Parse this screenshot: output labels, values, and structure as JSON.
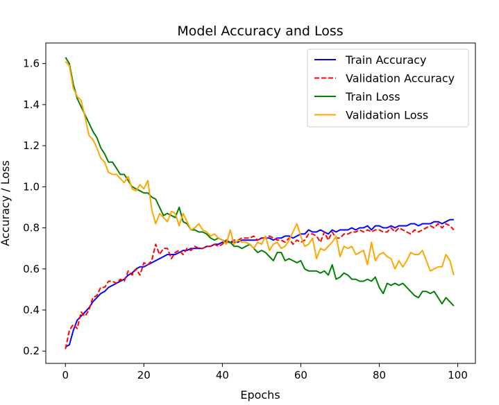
{
  "chart_data": {
    "type": "line",
    "title": "Model Accuracy and Loss",
    "xlabel": "Epochs",
    "ylabel": "Accuracy / Loss",
    "xlim": [
      -5,
      104.5
    ],
    "ylim": [
      0.14,
      1.7
    ],
    "xticks": [
      0,
      20,
      40,
      60,
      80,
      100
    ],
    "yticks": [
      0.2,
      0.4,
      0.6,
      0.8,
      1.0,
      1.2,
      1.4,
      1.6
    ],
    "xtick_labels": [
      "0",
      "20",
      "40",
      "60",
      "80",
      "100"
    ],
    "ytick_labels": [
      "0.2",
      "0.4",
      "0.6",
      "0.8",
      "1.0",
      "1.2",
      "1.4",
      "1.6"
    ],
    "grid": false,
    "legend_position": "top-right",
    "series": [
      {
        "name": "Train Accuracy",
        "color": "#0000ff",
        "style": "solid",
        "x": [
          0,
          1,
          2,
          3,
          4,
          5,
          6,
          7,
          8,
          9,
          10,
          11,
          12,
          13,
          14,
          15,
          16,
          17,
          18,
          19,
          20,
          21,
          22,
          23,
          24,
          25,
          26,
          27,
          28,
          29,
          30,
          31,
          32,
          33,
          34,
          35,
          36,
          37,
          38,
          39,
          40,
          41,
          42,
          43,
          44,
          45,
          46,
          47,
          48,
          49,
          50,
          51,
          52,
          53,
          54,
          55,
          56,
          57,
          58,
          59,
          60,
          61,
          62,
          63,
          64,
          65,
          66,
          67,
          68,
          69,
          70,
          71,
          72,
          73,
          74,
          75,
          76,
          77,
          78,
          79,
          80,
          81,
          82,
          83,
          84,
          85,
          86,
          87,
          88,
          89,
          90,
          91,
          92,
          93,
          94,
          95,
          96,
          97,
          98,
          99
        ],
        "values": [
          0.22,
          0.23,
          0.3,
          0.35,
          0.37,
          0.39,
          0.41,
          0.44,
          0.46,
          0.48,
          0.49,
          0.51,
          0.52,
          0.53,
          0.54,
          0.55,
          0.57,
          0.58,
          0.6,
          0.61,
          0.61,
          0.62,
          0.63,
          0.64,
          0.65,
          0.66,
          0.67,
          0.67,
          0.67,
          0.68,
          0.69,
          0.69,
          0.7,
          0.7,
          0.7,
          0.7,
          0.71,
          0.71,
          0.72,
          0.72,
          0.73,
          0.73,
          0.73,
          0.73,
          0.73,
          0.74,
          0.74,
          0.74,
          0.74,
          0.74,
          0.75,
          0.75,
          0.75,
          0.74,
          0.75,
          0.75,
          0.76,
          0.76,
          0.75,
          0.76,
          0.77,
          0.77,
          0.79,
          0.78,
          0.78,
          0.79,
          0.78,
          0.77,
          0.79,
          0.78,
          0.79,
          0.79,
          0.79,
          0.8,
          0.79,
          0.8,
          0.8,
          0.81,
          0.79,
          0.81,
          0.81,
          0.8,
          0.8,
          0.81,
          0.8,
          0.81,
          0.81,
          0.81,
          0.82,
          0.82,
          0.81,
          0.82,
          0.82,
          0.82,
          0.83,
          0.83,
          0.82,
          0.83,
          0.84,
          0.84
        ]
      },
      {
        "name": "Validation Accuracy",
        "color": "#ff0000",
        "style": "dashed",
        "x": [
          0,
          1,
          2,
          3,
          4,
          5,
          6,
          7,
          8,
          9,
          10,
          11,
          12,
          13,
          14,
          15,
          16,
          17,
          18,
          19,
          20,
          21,
          22,
          23,
          24,
          25,
          26,
          27,
          28,
          29,
          30,
          31,
          32,
          33,
          34,
          35,
          36,
          37,
          38,
          39,
          40,
          41,
          42,
          43,
          44,
          45,
          46,
          47,
          48,
          49,
          50,
          51,
          52,
          53,
          54,
          55,
          56,
          57,
          58,
          59,
          60,
          61,
          62,
          63,
          64,
          65,
          66,
          67,
          68,
          69,
          70,
          71,
          72,
          73,
          74,
          75,
          76,
          77,
          78,
          79,
          80,
          81,
          82,
          83,
          84,
          85,
          86,
          87,
          88,
          89,
          90,
          91,
          92,
          93,
          94,
          95,
          96,
          97,
          98,
          99
        ],
        "values": [
          0.21,
          0.3,
          0.33,
          0.31,
          0.39,
          0.37,
          0.4,
          0.46,
          0.47,
          0.51,
          0.51,
          0.54,
          0.54,
          0.53,
          0.55,
          0.54,
          0.59,
          0.57,
          0.6,
          0.57,
          0.63,
          0.62,
          0.64,
          0.72,
          0.67,
          0.7,
          0.7,
          0.65,
          0.68,
          0.69,
          0.67,
          0.7,
          0.69,
          0.71,
          0.7,
          0.7,
          0.71,
          0.71,
          0.72,
          0.71,
          0.72,
          0.74,
          0.73,
          0.74,
          0.74,
          0.75,
          0.75,
          0.75,
          0.76,
          0.74,
          0.75,
          0.75,
          0.76,
          0.75,
          0.74,
          0.74,
          0.73,
          0.75,
          0.72,
          0.74,
          0.73,
          0.74,
          0.77,
          0.77,
          0.76,
          0.73,
          0.78,
          0.74,
          0.78,
          0.75,
          0.75,
          0.77,
          0.77,
          0.78,
          0.78,
          0.79,
          0.78,
          0.79,
          0.78,
          0.79,
          0.79,
          0.78,
          0.78,
          0.8,
          0.78,
          0.8,
          0.79,
          0.78,
          0.77,
          0.79,
          0.78,
          0.79,
          0.8,
          0.81,
          0.8,
          0.82,
          0.8,
          0.82,
          0.81,
          0.79
        ]
      },
      {
        "name": "Train Loss",
        "color": "#008000",
        "style": "solid",
        "x": [
          0,
          1,
          2,
          3,
          4,
          5,
          6,
          7,
          8,
          9,
          10,
          11,
          12,
          13,
          14,
          15,
          16,
          17,
          18,
          19,
          20,
          21,
          22,
          23,
          24,
          25,
          26,
          27,
          28,
          29,
          30,
          31,
          32,
          33,
          34,
          35,
          36,
          37,
          38,
          39,
          40,
          41,
          42,
          43,
          44,
          45,
          46,
          47,
          48,
          49,
          50,
          51,
          52,
          53,
          54,
          55,
          56,
          57,
          58,
          59,
          60,
          61,
          62,
          63,
          64,
          65,
          66,
          67,
          68,
          69,
          70,
          71,
          72,
          73,
          74,
          75,
          76,
          77,
          78,
          79,
          80,
          81,
          82,
          83,
          84,
          85,
          86,
          87,
          88,
          89,
          90,
          91,
          92,
          93,
          94,
          95,
          96,
          97,
          98,
          99
        ],
        "values": [
          1.63,
          1.6,
          1.5,
          1.43,
          1.39,
          1.35,
          1.31,
          1.27,
          1.24,
          1.19,
          1.16,
          1.12,
          1.12,
          1.09,
          1.06,
          1.06,
          1.03,
          1.0,
          0.99,
          0.98,
          0.97,
          0.97,
          0.95,
          0.94,
          0.9,
          0.86,
          0.87,
          0.86,
          0.85,
          0.9,
          0.83,
          0.82,
          0.79,
          0.79,
          0.78,
          0.78,
          0.77,
          0.75,
          0.74,
          0.75,
          0.74,
          0.73,
          0.73,
          0.71,
          0.71,
          0.7,
          0.71,
          0.72,
          0.7,
          0.68,
          0.69,
          0.68,
          0.66,
          0.64,
          0.68,
          0.68,
          0.64,
          0.65,
          0.64,
          0.63,
          0.64,
          0.6,
          0.59,
          0.59,
          0.59,
          0.58,
          0.59,
          0.57,
          0.62,
          0.55,
          0.56,
          0.58,
          0.57,
          0.55,
          0.55,
          0.54,
          0.54,
          0.55,
          0.54,
          0.56,
          0.51,
          0.48,
          0.53,
          0.52,
          0.53,
          0.52,
          0.53,
          0.51,
          0.49,
          0.47,
          0.46,
          0.49,
          0.49,
          0.48,
          0.49,
          0.46,
          0.43,
          0.46,
          0.44,
          0.42
        ]
      },
      {
        "name": "Validation Loss",
        "color": "#ffa500",
        "style": "solid",
        "x": [
          0,
          1,
          2,
          3,
          4,
          5,
          6,
          7,
          8,
          9,
          10,
          11,
          12,
          13,
          14,
          15,
          16,
          17,
          18,
          19,
          20,
          21,
          22,
          23,
          24,
          25,
          26,
          27,
          28,
          29,
          30,
          31,
          32,
          33,
          34,
          35,
          36,
          37,
          38,
          39,
          40,
          41,
          42,
          43,
          44,
          45,
          46,
          47,
          48,
          49,
          50,
          51,
          52,
          53,
          54,
          55,
          56,
          57,
          58,
          59,
          60,
          61,
          62,
          63,
          64,
          65,
          66,
          67,
          68,
          69,
          70,
          71,
          72,
          73,
          74,
          75,
          76,
          77,
          78,
          79,
          80,
          81,
          82,
          83,
          84,
          85,
          86,
          87,
          88,
          89,
          90,
          91,
          92,
          93,
          94,
          95,
          96,
          97,
          98,
          99
        ],
        "values": [
          1.61,
          1.59,
          1.48,
          1.44,
          1.42,
          1.34,
          1.25,
          1.23,
          1.19,
          1.14,
          1.12,
          1.07,
          1.06,
          1.06,
          1.04,
          1.02,
          1.05,
          0.99,
          0.98,
          1.01,
          0.99,
          1.03,
          0.89,
          0.82,
          0.87,
          0.85,
          0.83,
          0.88,
          0.87,
          0.81,
          0.87,
          0.83,
          0.79,
          0.8,
          0.82,
          0.79,
          0.78,
          0.76,
          0.77,
          0.75,
          0.74,
          0.72,
          0.79,
          0.72,
          0.74,
          0.73,
          0.73,
          0.72,
          0.7,
          0.73,
          0.72,
          0.76,
          0.69,
          0.72,
          0.73,
          0.7,
          0.71,
          0.74,
          0.78,
          0.82,
          0.76,
          0.71,
          0.72,
          0.75,
          0.65,
          0.7,
          0.69,
          0.71,
          0.73,
          0.76,
          0.66,
          0.71,
          0.7,
          0.71,
          0.67,
          0.68,
          0.69,
          0.62,
          0.73,
          0.64,
          0.67,
          0.68,
          0.66,
          0.65,
          0.6,
          0.64,
          0.61,
          0.64,
          0.68,
          0.67,
          0.67,
          0.69,
          0.64,
          0.59,
          0.6,
          0.61,
          0.61,
          0.67,
          0.64,
          0.57
        ]
      }
    ]
  }
}
